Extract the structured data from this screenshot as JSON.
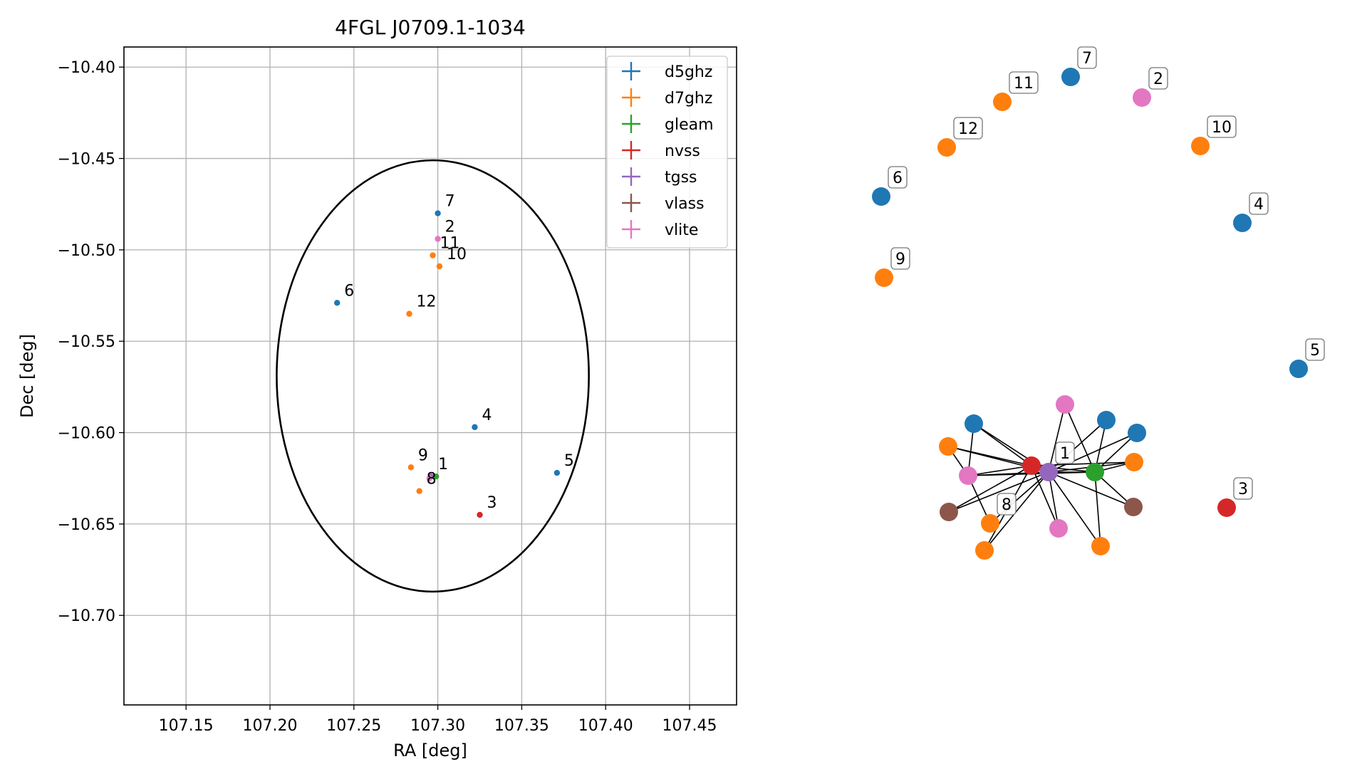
{
  "chart_data": [
    {
      "type": "scatter",
      "title": "4FGL J0709.1-1034",
      "xlabel": "RA [deg]",
      "ylabel": "Dec [deg]",
      "xlim": [
        107.113,
        107.478
      ],
      "ylim": [
        -10.749,
        -10.389
      ],
      "xticks": [
        "107.15",
        "107.20",
        "107.25",
        "107.30",
        "107.35",
        "107.40",
        "107.45"
      ],
      "yticks": [
        "−10.40",
        "−10.45",
        "−10.50",
        "−10.55",
        "−10.60",
        "−10.65",
        "−10.70"
      ],
      "grid": true,
      "legend_position": "top-right",
      "series": [
        {
          "name": "d5ghz",
          "color": "#1f77b4",
          "points": [
            {
              "ra": 107.3,
              "dec": -10.48,
              "label": "7"
            },
            {
              "ra": 107.24,
              "dec": -10.529,
              "label": "6"
            },
            {
              "ra": 107.322,
              "dec": -10.597,
              "label": "4"
            },
            {
              "ra": 107.371,
              "dec": -10.622,
              "label": "5"
            }
          ]
        },
        {
          "name": "d7ghz",
          "color": "#ff7f0e",
          "points": [
            {
              "ra": 107.297,
              "dec": -10.503,
              "label": "11"
            },
            {
              "ra": 107.301,
              "dec": -10.509,
              "label": "10"
            },
            {
              "ra": 107.283,
              "dec": -10.535,
              "label": "12"
            },
            {
              "ra": 107.284,
              "dec": -10.619,
              "label": "9"
            },
            {
              "ra": 107.289,
              "dec": -10.632,
              "label": "8"
            }
          ]
        },
        {
          "name": "gleam",
          "color": "#2ca02c",
          "points": [
            {
              "ra": 107.299,
              "dec": -10.624,
              "label": ""
            }
          ]
        },
        {
          "name": "nvss",
          "color": "#d62728",
          "points": [
            {
              "ra": 107.325,
              "dec": -10.645,
              "label": "3"
            }
          ]
        },
        {
          "name": "tgss",
          "color": "#9467bd",
          "points": [
            {
              "ra": 107.296,
              "dec": -10.624,
              "label": "1"
            }
          ]
        },
        {
          "name": "vlass",
          "color": "#8c564b",
          "points": []
        },
        {
          "name": "vlite",
          "color": "#e377c2",
          "points": [
            {
              "ra": 107.3,
              "dec": -10.494,
              "label": "2"
            },
            {
              "ra": 107.295,
              "dec": -10.625,
              "label": ""
            }
          ]
        }
      ],
      "ellipse": {
        "center": [
          107.297,
          -10.569
        ],
        "half_width_ra": 0.093,
        "half_height_dec": 0.118
      }
    },
    {
      "type": "network",
      "colors": {
        "d5ghz": "#1f77b4",
        "d7ghz": "#ff7f0e",
        "gleam": "#2ca02c",
        "nvss": "#d62728",
        "tgss": "#9467bd",
        "vlass": "#8c564b",
        "vlite": "#e377c2"
      },
      "nodes": [
        {
          "id": "7",
          "catalog": "d5ghz",
          "label": "7"
        },
        {
          "id": "2",
          "catalog": "vlite",
          "label": "2"
        },
        {
          "id": "11",
          "catalog": "d7ghz",
          "label": "11"
        },
        {
          "id": "12",
          "catalog": "d7ghz",
          "label": "12"
        },
        {
          "id": "10",
          "catalog": "d7ghz",
          "label": "10"
        },
        {
          "id": "6",
          "catalog": "d5ghz",
          "label": "6"
        },
        {
          "id": "4",
          "catalog": "d5ghz",
          "label": "4"
        },
        {
          "id": "9",
          "catalog": "d7ghz",
          "label": "9"
        },
        {
          "id": "5",
          "catalog": "d5ghz",
          "label": "5"
        },
        {
          "id": "3",
          "catalog": "nvss",
          "label": "3"
        },
        {
          "id": "1",
          "catalog": "tgss",
          "label": "1"
        },
        {
          "id": "8",
          "catalog": "d7ghz",
          "label": "8"
        },
        {
          "id": "a",
          "catalog": "nvss",
          "label": ""
        },
        {
          "id": "b",
          "catalog": "gleam",
          "label": ""
        },
        {
          "id": "c",
          "catalog": "vlite",
          "label": ""
        },
        {
          "id": "d",
          "catalog": "d5ghz",
          "label": ""
        },
        {
          "id": "e",
          "catalog": "d5ghz",
          "label": ""
        },
        {
          "id": "f",
          "catalog": "d5ghz",
          "label": ""
        },
        {
          "id": "g",
          "catalog": "d7ghz",
          "label": ""
        },
        {
          "id": "h",
          "catalog": "d7ghz",
          "label": ""
        },
        {
          "id": "i",
          "catalog": "vlite",
          "label": ""
        },
        {
          "id": "j",
          "catalog": "vlass",
          "label": ""
        },
        {
          "id": "k",
          "catalog": "vlass",
          "label": ""
        },
        {
          "id": "l",
          "catalog": "vlite",
          "label": ""
        },
        {
          "id": "m",
          "catalog": "d7ghz",
          "label": ""
        },
        {
          "id": "n",
          "catalog": "d7ghz",
          "label": ""
        }
      ],
      "edges": [
        [
          "d",
          "a"
        ],
        [
          "d",
          "1"
        ],
        [
          "d",
          "i"
        ],
        [
          "g",
          "a"
        ],
        [
          "g",
          "1"
        ],
        [
          "g",
          "i"
        ],
        [
          "i",
          "a"
        ],
        [
          "i",
          "1"
        ],
        [
          "i",
          "b"
        ],
        [
          "j",
          "a"
        ],
        [
          "j",
          "1"
        ],
        [
          "8",
          "i"
        ],
        [
          "8",
          "1"
        ],
        [
          "n",
          "a"
        ],
        [
          "n",
          "1"
        ],
        [
          "c",
          "1"
        ],
        [
          "c",
          "b"
        ],
        [
          "e",
          "1"
        ],
        [
          "e",
          "b"
        ],
        [
          "f",
          "1"
        ],
        [
          "f",
          "b"
        ],
        [
          "h",
          "1"
        ],
        [
          "h",
          "b"
        ],
        [
          "h",
          "a"
        ],
        [
          "k",
          "1"
        ],
        [
          "k",
          "b"
        ],
        [
          "l",
          "1"
        ],
        [
          "l",
          "a"
        ],
        [
          "m",
          "b"
        ],
        [
          "m",
          "1"
        ],
        [
          "a",
          "1"
        ],
        [
          "1",
          "b"
        ],
        [
          "a",
          "b"
        ]
      ]
    }
  ]
}
